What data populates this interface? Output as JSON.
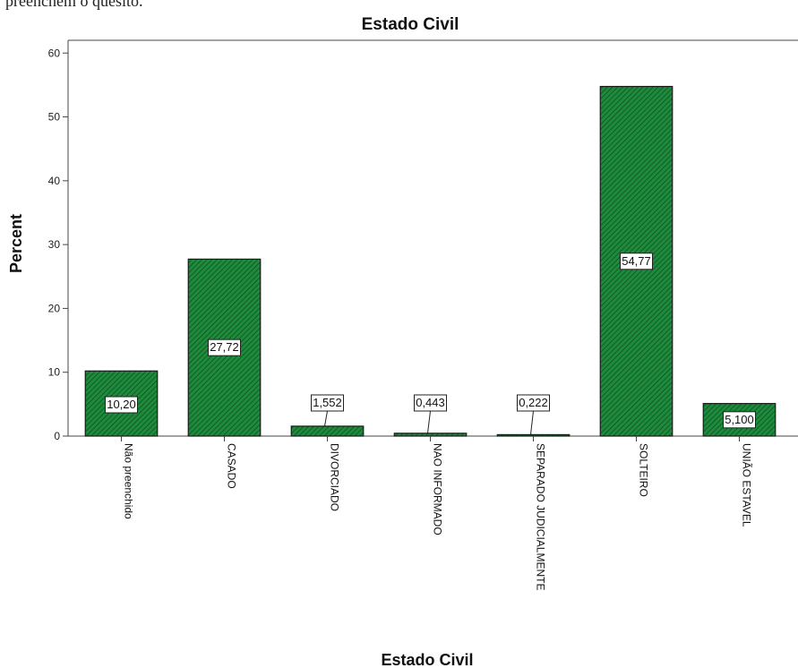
{
  "page": {
    "top_text": "preenchem o quesito."
  },
  "chart_data": {
    "type": "bar",
    "title": "Estado Civil",
    "xlabel": "Estado Civil",
    "ylabel": "Percent",
    "ylim": [
      0,
      62
    ],
    "yticks": [
      0,
      10,
      20,
      30,
      40,
      50,
      60
    ],
    "categories": [
      "Não preenchido",
      "CASADO",
      "DIVORCIADO",
      "NAO INFORMADO",
      "SEPARADO JUDICIALMENTE",
      "SOLTEIRO",
      "UNIÃO ESTAVEL"
    ],
    "values": [
      10.2,
      27.72,
      1.552,
      0.443,
      0.222,
      54.77,
      5.1
    ],
    "data_labels": [
      "10,20",
      "27,72",
      "1,552",
      "0,443",
      "0,222",
      "54,77",
      "5,100"
    ],
    "bar_color": "#1e8a3c",
    "bar_pattern": "diagonal-hatch",
    "grid": false,
    "legend": "none"
  }
}
